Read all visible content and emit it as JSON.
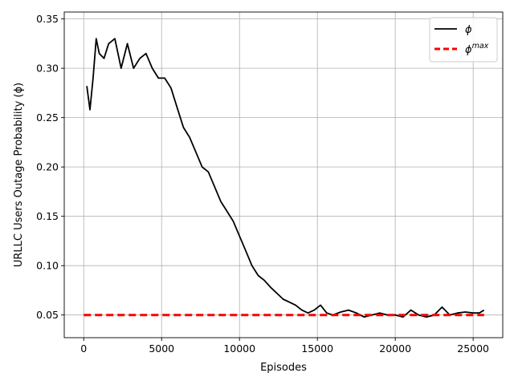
{
  "chart_data": {
    "type": "line",
    "title": "",
    "xlabel": "Episodes",
    "ylabel": "URLLC Users Outage Probability (ϕ)",
    "xlim": [
      -1250,
      26900
    ],
    "ylim": [
      0.027,
      0.357
    ],
    "xticks": [
      0,
      5000,
      10000,
      15000,
      20000,
      25000
    ],
    "yticks": [
      0.05,
      0.1,
      0.15,
      0.2,
      0.25,
      0.3,
      0.35
    ],
    "xtick_labels": [
      "0",
      "5000",
      "10000",
      "15000",
      "20000",
      "25000"
    ],
    "ytick_labels": [
      "0.05",
      "0.10",
      "0.15",
      "0.20",
      "0.25",
      "0.30",
      "0.35"
    ],
    "grid": true,
    "legend_position": "top-right",
    "series": [
      {
        "name": "ϕ",
        "color": "#000000",
        "style": "solid",
        "x": [
          200,
          400,
          600,
          800,
          1000,
          1300,
          1600,
          2000,
          2400,
          2800,
          3200,
          3600,
          4000,
          4400,
          4800,
          5200,
          5600,
          6000,
          6400,
          6800,
          7200,
          7600,
          8000,
          8400,
          8800,
          9200,
          9600,
          10000,
          10400,
          10800,
          11200,
          11600,
          12000,
          12400,
          12800,
          13200,
          13600,
          14000,
          14400,
          14800,
          15200,
          15600,
          16000,
          16500,
          17000,
          17500,
          18000,
          18500,
          19000,
          19500,
          20000,
          20500,
          21000,
          21500,
          22000,
          22500,
          23000,
          23500,
          24000,
          24500,
          25000,
          25400,
          25700
        ],
        "values": [
          0.282,
          0.258,
          0.29,
          0.33,
          0.315,
          0.31,
          0.325,
          0.33,
          0.3,
          0.325,
          0.3,
          0.31,
          0.315,
          0.3,
          0.29,
          0.29,
          0.28,
          0.26,
          0.24,
          0.23,
          0.215,
          0.2,
          0.195,
          0.18,
          0.165,
          0.155,
          0.145,
          0.13,
          0.115,
          0.1,
          0.09,
          0.085,
          0.078,
          0.072,
          0.066,
          0.063,
          0.06,
          0.055,
          0.052,
          0.055,
          0.06,
          0.052,
          0.05,
          0.053,
          0.055,
          0.052,
          0.048,
          0.05,
          0.052,
          0.05,
          0.05,
          0.048,
          0.055,
          0.05,
          0.048,
          0.05,
          0.058,
          0.05,
          0.052,
          0.053,
          0.052,
          0.052,
          0.055
        ]
      },
      {
        "name": "ϕ^max",
        "color": "#ff0000",
        "style": "dashed",
        "x": [
          0,
          25700
        ],
        "values": [
          0.05,
          0.05
        ]
      }
    ],
    "legend": [
      {
        "label": "ϕ",
        "superscript": ""
      },
      {
        "label": "ϕ",
        "superscript": "max"
      }
    ]
  }
}
